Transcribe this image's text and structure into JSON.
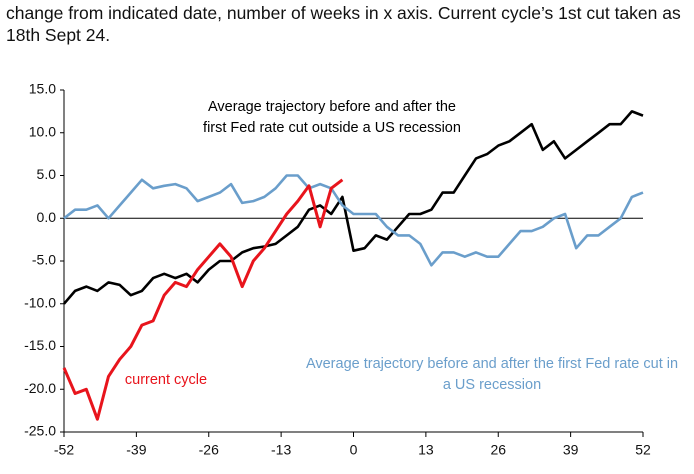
{
  "chart_data": {
    "type": "line",
    "title": "change from indicated date, number of weeks in x axis. Current cycle’s 1st cut taken as 18th Sept 24.",
    "x": [
      -52,
      -50,
      -48,
      -46,
      -44,
      -42,
      -40,
      -38,
      -36,
      -34,
      -32,
      -30,
      -28,
      -26,
      -24,
      -22,
      -20,
      -18,
      -16,
      -14,
      -12,
      -10,
      -8,
      -6,
      -4,
      -2,
      0,
      2,
      4,
      6,
      8,
      10,
      12,
      14,
      16,
      18,
      20,
      22,
      24,
      26,
      28,
      30,
      32,
      34,
      36,
      38,
      40,
      42,
      44,
      46,
      48,
      50,
      52
    ],
    "series": [
      {
        "name": "Average trajectory before and after the first Fed rate cut outside a US recession",
        "color": "#000000",
        "values": [
          -10,
          -8.5,
          -8,
          -8.5,
          -7.5,
          -7.8,
          -9,
          -8.5,
          -7,
          -6.5,
          -7,
          -6.5,
          -7.5,
          -6,
          -5,
          -5,
          -4,
          -3.5,
          -3.3,
          -3,
          -2,
          -1,
          1,
          1.5,
          0.5,
          2.5,
          -3.8,
          -3.5,
          -2,
          -2.5,
          -1,
          0.5,
          0.5,
          1,
          3,
          3,
          5,
          7,
          7.5,
          8.5,
          9,
          10,
          11,
          8,
          9,
          7,
          8,
          9,
          10,
          11,
          11,
          12.5,
          12
        ]
      },
      {
        "name": "Average trajectory before and after the first Fed rate cut in a US recession",
        "color": "#6a9ecb",
        "values": [
          0,
          1,
          1,
          1.5,
          0,
          1.5,
          3,
          4.5,
          3.5,
          3.8,
          4,
          3.5,
          2,
          2.5,
          3,
          4,
          1.8,
          2,
          2.5,
          3.5,
          5,
          5,
          3.5,
          4,
          3.5,
          1.5,
          0.5,
          0.5,
          0.5,
          -1,
          -2,
          -2,
          -3,
          -5.5,
          -4,
          -4,
          -4.5,
          -4,
          -4.5,
          -4.5,
          -3,
          -1.5,
          -1.5,
          -1,
          0,
          0.5,
          -3.5,
          -2,
          -2,
          -1,
          0,
          2.5,
          3
        ]
      },
      {
        "name": "current cycle",
        "color": "#e8141c",
        "values": [
          -17.5,
          -20.5,
          -20,
          -23.5,
          -18.5,
          -16.5,
          -15,
          -12.5,
          -12,
          -9,
          -7.5,
          -8,
          -6,
          -4.5,
          -3,
          -4.5,
          -8,
          -5,
          -3.5,
          -1.5,
          0.5,
          2,
          3.8,
          -1,
          3.5,
          4.5,
          null,
          null,
          null,
          null,
          null,
          null,
          null,
          null,
          null,
          null,
          null,
          null,
          null,
          null,
          null,
          null,
          null,
          null,
          null,
          null,
          null,
          null,
          null,
          null,
          null,
          null,
          null
        ]
      }
    ],
    "xlim": [
      -52,
      52
    ],
    "xticks": [
      -52,
      -39,
      -26,
      -13,
      0,
      13,
      26,
      39,
      52
    ],
    "ylim": [
      -25,
      15
    ],
    "yticks": [
      {
        "value": -25,
        "label": "-25.0"
      },
      {
        "value": -20,
        "label": "-20.0"
      },
      {
        "value": -15,
        "label": "-15.0"
      },
      {
        "value": -10,
        "label": "-10.0"
      },
      {
        "value": -5,
        "label": "-5.0"
      },
      {
        "value": 0,
        "label": "0.0"
      },
      {
        "value": 5,
        "label": "5.0"
      },
      {
        "value": 10,
        "label": "10.0"
      },
      {
        "value": 15,
        "label": "15.0"
      }
    ],
    "grid": false
  }
}
